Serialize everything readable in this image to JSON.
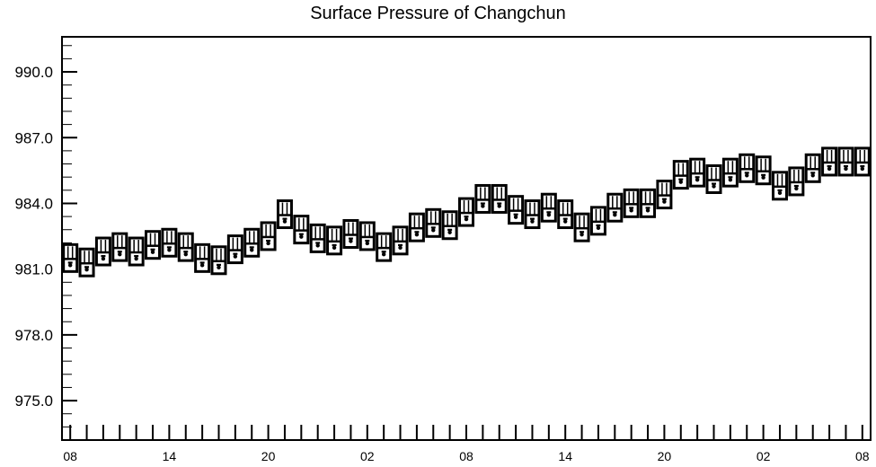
{
  "chart_data": {
    "type": "box",
    "title": "Surface Pressure of Changchun",
    "xlabel": "",
    "ylabel": "",
    "ylim": [
      973.2,
      991.6
    ],
    "yticks": [
      {
        "value": 975.0,
        "label": "975.0"
      },
      {
        "value": 978.0,
        "label": "978.0"
      },
      {
        "value": 981.0,
        "label": "981.0"
      },
      {
        "value": 984.0,
        "label": "984.0"
      },
      {
        "value": 987.0,
        "label": "987.0"
      },
      {
        "value": 990.0,
        "label": "990.0"
      }
    ],
    "xlim": [
      -0.5,
      48.5
    ],
    "xticks": [
      {
        "index": 0,
        "label": "08"
      },
      {
        "index": 6,
        "label": "14"
      },
      {
        "index": 12,
        "label": "20"
      },
      {
        "index": 18,
        "label": "02"
      },
      {
        "index": 24,
        "label": "08"
      },
      {
        "index": 30,
        "label": "14"
      },
      {
        "index": 36,
        "label": "20"
      },
      {
        "index": 42,
        "label": "02"
      },
      {
        "index": 48,
        "label": "08"
      }
    ],
    "box_halfrange": 0.75,
    "values": [
      981.3,
      981.1,
      981.6,
      981.8,
      981.6,
      981.9,
      982.0,
      981.8,
      981.3,
      981.2,
      981.7,
      982.0,
      982.3,
      983.3,
      982.6,
      982.2,
      982.1,
      982.4,
      982.3,
      981.8,
      982.1,
      982.7,
      982.9,
      982.8,
      983.4,
      984.0,
      984.0,
      983.5,
      983.3,
      983.6,
      983.3,
      982.7,
      983.0,
      983.6,
      983.8,
      983.8,
      984.2,
      985.1,
      985.2,
      984.9,
      985.2,
      985.4,
      985.3,
      984.6,
      984.8,
      985.4,
      985.7,
      985.7,
      985.7
    ]
  }
}
